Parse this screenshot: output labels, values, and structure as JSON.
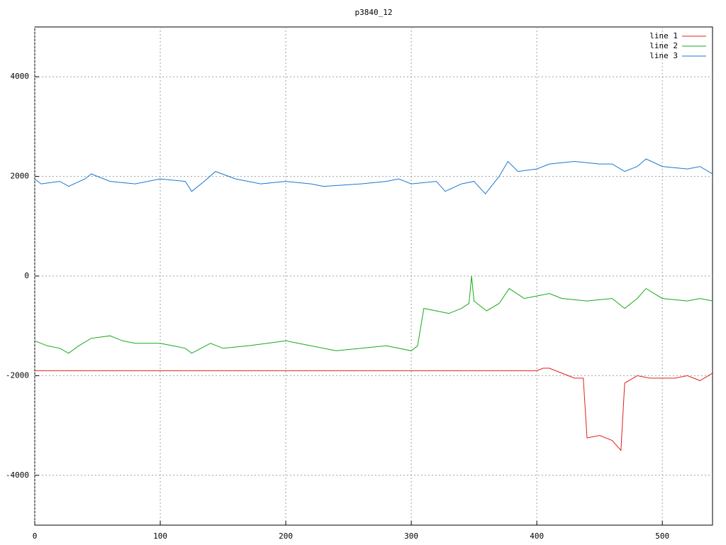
{
  "chart_data": {
    "type": "line",
    "title": "p3840_12",
    "xlim": [
      0,
      540
    ],
    "xticks": [
      0,
      100,
      200,
      300,
      400,
      500
    ],
    "ylim": [
      -5000,
      5000
    ],
    "yticks": [
      -4000,
      -2000,
      0,
      2000,
      4000
    ],
    "grid": true,
    "legend": "top-right",
    "series": [
      {
        "name": "line 1",
        "color": "#e0201b",
        "x": [
          0,
          100,
          200,
          300,
          400,
          405,
          410,
          420,
          430,
          437,
          440,
          450,
          460,
          467,
          470,
          480,
          490,
          500,
          510,
          520,
          530,
          540
        ],
        "values": [
          -1900,
          -1900,
          -1900,
          -1900,
          -1900,
          -1850,
          -1850,
          -1950,
          -2050,
          -2050,
          -3250,
          -3200,
          -3300,
          -3500,
          -2150,
          -2000,
          -2050,
          -2050,
          -2050,
          -2000,
          -2100,
          -1950
        ]
      },
      {
        "name": "line 2",
        "color": "#1aa81a",
        "x": [
          0,
          10,
          20,
          27,
          35,
          45,
          60,
          70,
          80,
          100,
          110,
          120,
          125,
          140,
          150,
          170,
          200,
          220,
          240,
          260,
          280,
          300,
          305,
          310,
          320,
          330,
          340,
          346,
          348,
          350,
          360,
          370,
          378,
          390,
          400,
          410,
          420,
          440,
          460,
          470,
          480,
          487,
          500,
          520,
          530,
          540
        ],
        "values": [
          -1300,
          -1400,
          -1450,
          -1550,
          -1400,
          -1250,
          -1200,
          -1300,
          -1350,
          -1350,
          -1400,
          -1450,
          -1550,
          -1350,
          -1450,
          -1400,
          -1300,
          -1400,
          -1500,
          -1450,
          -1400,
          -1500,
          -1400,
          -650,
          -700,
          -750,
          -650,
          -550,
          0,
          -500,
          -700,
          -550,
          -250,
          -450,
          -400,
          -350,
          -450,
          -500,
          -450,
          -650,
          -450,
          -250,
          -450,
          -500,
          -450,
          -500
        ]
      },
      {
        "name": "line 3",
        "color": "#1a78d0",
        "x": [
          0,
          5,
          20,
          27,
          40,
          45,
          60,
          80,
          100,
          120,
          125,
          135,
          144,
          160,
          180,
          200,
          220,
          230,
          260,
          280,
          290,
          300,
          320,
          327,
          340,
          350,
          359,
          370,
          377,
          385,
          400,
          410,
          430,
          450,
          460,
          470,
          480,
          487,
          500,
          520,
          530,
          540
        ],
        "values": [
          1950,
          1850,
          1900,
          1800,
          1950,
          2050,
          1900,
          1850,
          1950,
          1900,
          1700,
          1900,
          2100,
          1950,
          1850,
          1900,
          1850,
          1800,
          1850,
          1900,
          1950,
          1850,
          1900,
          1700,
          1850,
          1900,
          1650,
          2000,
          2300,
          2100,
          2150,
          2250,
          2300,
          2250,
          2250,
          2100,
          2200,
          2350,
          2200,
          2150,
          2200,
          2050
        ]
      }
    ]
  }
}
